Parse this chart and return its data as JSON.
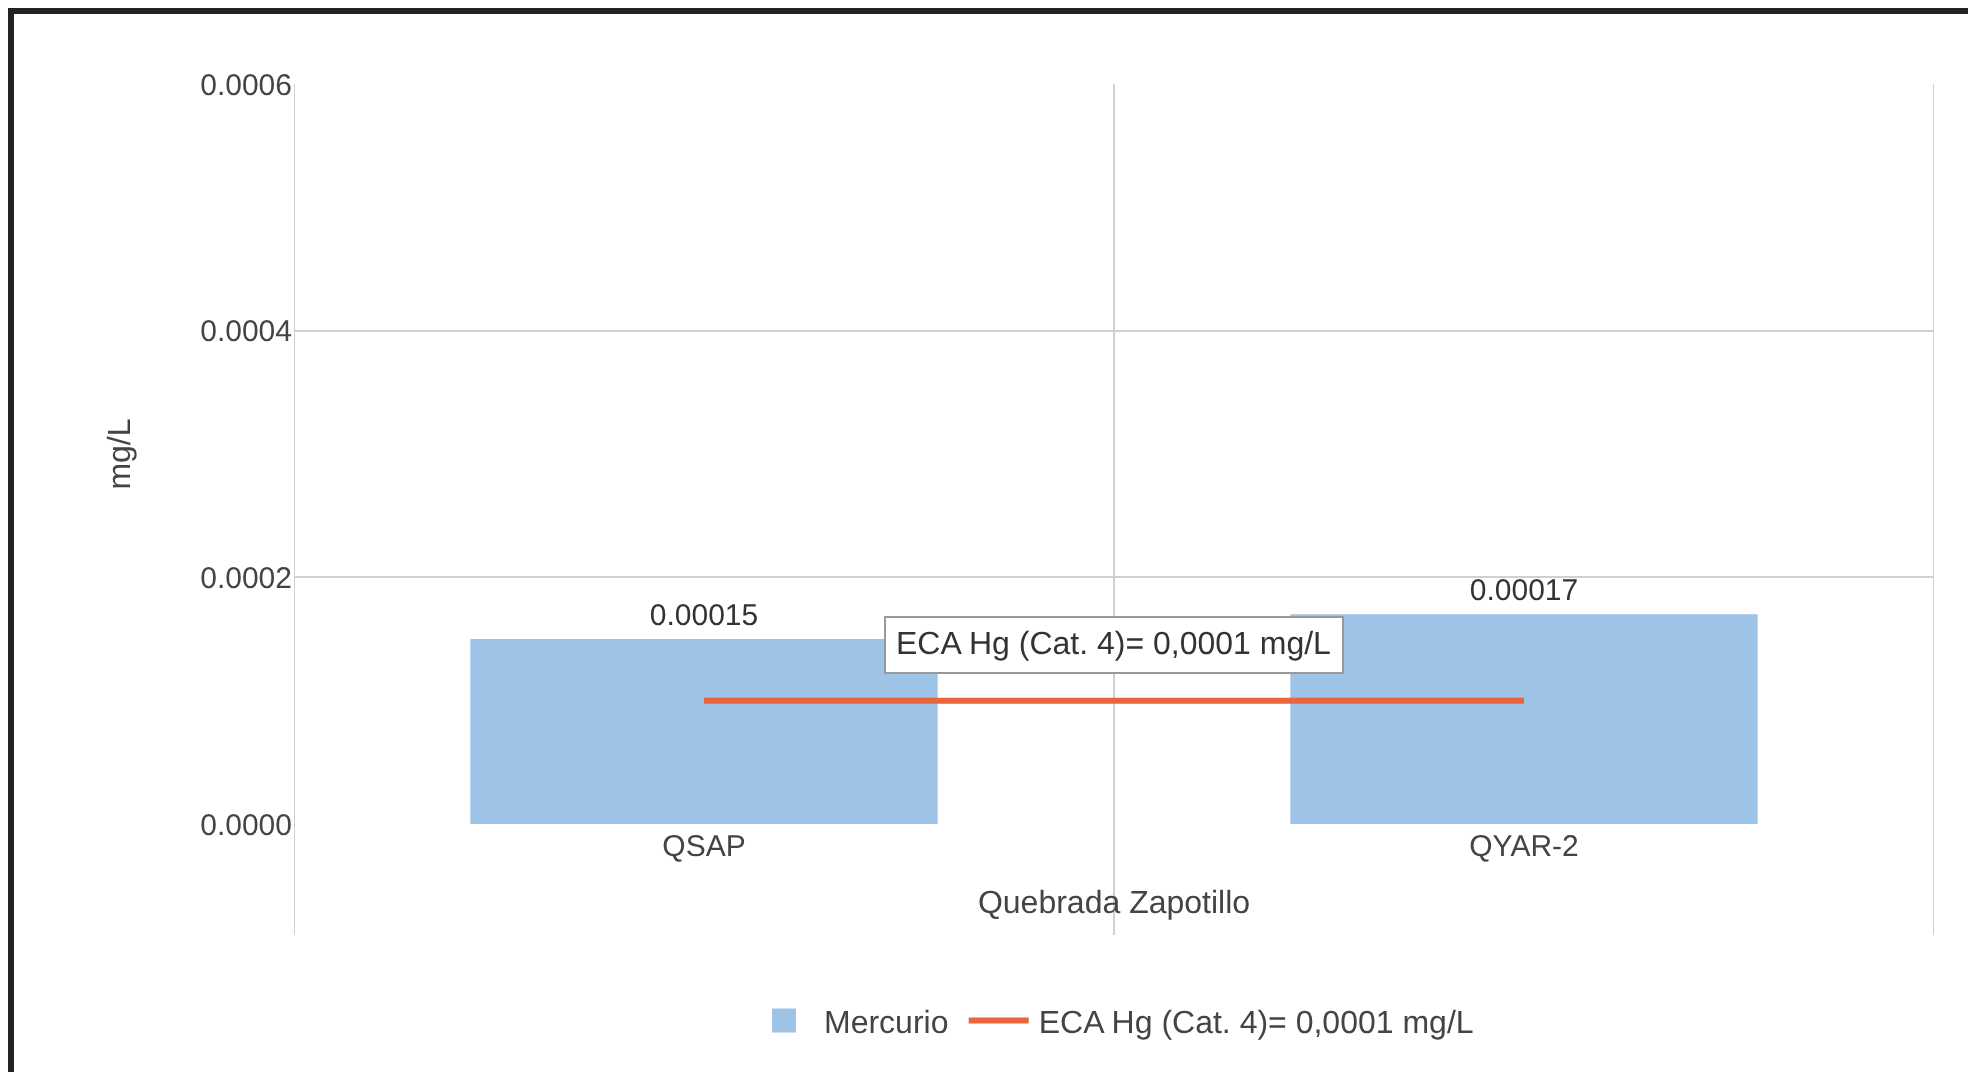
{
  "chart_data": {
    "type": "bar",
    "categories": [
      "QSAP",
      "QYAR-2"
    ],
    "series": [
      {
        "name": "Mercurio",
        "color": "#9dc3e6",
        "values": [
          0.00015,
          0.00017
        ],
        "value_labels": [
          "0.00015",
          "0.00017"
        ]
      },
      {
        "type": "line",
        "name": "ECA Hg (Cat. 4)= 0,0001 mg/L",
        "color": "#e8663d",
        "values": [
          0.0001,
          0.0001
        ]
      }
    ],
    "xlabel": "Quebrada Zapotillo",
    "ylabel": "mg/L",
    "ylim": [
      0,
      0.0006
    ],
    "yticks": [
      {
        "value": 0,
        "label": "0.0000"
      },
      {
        "value": 0.0002,
        "label": "0.0002"
      },
      {
        "value": 0.0004,
        "label": "0.0004"
      },
      {
        "value": 0.0006,
        "label": "0.0006"
      }
    ],
    "annotations": [
      {
        "text": "ECA Hg (Cat. 4)= 0,0001 mg/L",
        "y": 0.0001
      }
    ],
    "grid": true,
    "legend": "bottom"
  }
}
